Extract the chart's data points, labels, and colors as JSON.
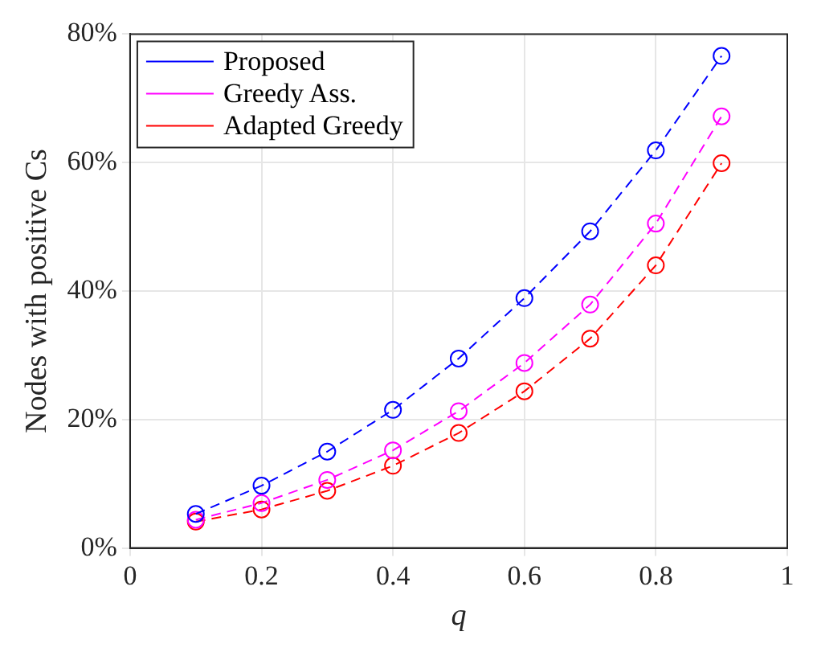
{
  "chart_data": {
    "type": "line",
    "xlabel": "q",
    "ylabel": "Nodes with positive Cs",
    "x": [
      0.1,
      0.2,
      0.3,
      0.4,
      0.5,
      0.6,
      0.7,
      0.8,
      0.9
    ],
    "series": [
      {
        "name": "Proposed",
        "color": "#0000ff",
        "values": [
          5.3,
          9.7,
          15.0,
          21.5,
          29.5,
          38.9,
          49.3,
          61.9,
          76.6
        ]
      },
      {
        "name": "Greedy Ass.",
        "color": "#ff00ff",
        "values": [
          4.4,
          7.0,
          10.6,
          15.2,
          21.3,
          28.8,
          37.9,
          50.5,
          67.2
        ]
      },
      {
        "name": "Adapted Greedy",
        "color": "#ff0000",
        "values": [
          4.1,
          6.0,
          8.9,
          12.8,
          17.9,
          24.4,
          32.6,
          44.0,
          59.9
        ]
      }
    ],
    "xlim": [
      0,
      1
    ],
    "xticks": [
      0,
      0.2,
      0.4,
      0.6,
      0.8,
      1
    ],
    "ylim": [
      0,
      80
    ],
    "yticks": [
      {
        "value": 0,
        "label": "0%"
      },
      {
        "value": 20,
        "label": "20%"
      },
      {
        "value": 40,
        "label": "40%"
      },
      {
        "value": 60,
        "label": "60%"
      },
      {
        "value": 80,
        "label": "80%"
      }
    ],
    "grid": true,
    "legend": "top left",
    "marker": "circle",
    "line_style": "dashed"
  }
}
